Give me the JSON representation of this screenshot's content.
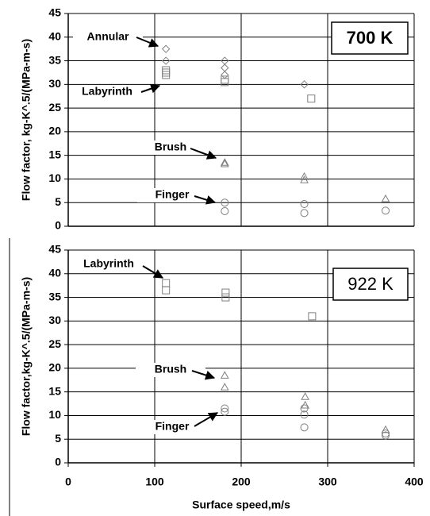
{
  "chart_data": [
    {
      "type": "scatter",
      "title": "700 K",
      "ylabel": "Flow factor, kg-K^.5/(MPa-m-s)",
      "xlim": [
        0,
        400
      ],
      "xticks": [
        0,
        100,
        200,
        300,
        400
      ],
      "ylim": [
        0,
        45
      ],
      "yticks": [
        0,
        5,
        10,
        15,
        20,
        25,
        30,
        35,
        40,
        45
      ],
      "grid": true,
      "series": [
        {
          "name": "Annular",
          "marker": "diamond",
          "color": "#808080",
          "x": [
            113,
            113,
            181,
            181,
            181,
            273
          ],
          "values": [
            37.5,
            35,
            35,
            33.5,
            32,
            30
          ]
        },
        {
          "name": "Labyrinth",
          "marker": "square",
          "color": "#808080",
          "x": [
            113,
            113,
            113,
            181,
            181,
            281
          ],
          "values": [
            33,
            32.5,
            32,
            31,
            30.5,
            27
          ]
        },
        {
          "name": "Brush",
          "marker": "triangle",
          "color": "#808080",
          "x": [
            181,
            181,
            273,
            273,
            367
          ],
          "values": [
            13.5,
            13.2,
            10.5,
            9.8,
            5.8
          ]
        },
        {
          "name": "Finger",
          "marker": "circle",
          "color": "#808080",
          "x": [
            181,
            181,
            273,
            273,
            367
          ],
          "values": [
            5,
            3.2,
            4.7,
            2.8,
            3.3
          ]
        }
      ]
    },
    {
      "type": "scatter",
      "title": "922 K",
      "ylabel": "Flow factor,kg-K^.5/(MPa-m-s)",
      "xlabel": "Surface speed,m/s",
      "xlim": [
        0,
        400
      ],
      "xticks": [
        0,
        100,
        200,
        300,
        400
      ],
      "ylim": [
        0,
        45
      ],
      "yticks": [
        0,
        5,
        10,
        15,
        20,
        25,
        30,
        35,
        40,
        45
      ],
      "grid": true,
      "series": [
        {
          "name": "Labyrinth",
          "marker": "square",
          "color": "#808080",
          "x": [
            113,
            113,
            182,
            182,
            282
          ],
          "values": [
            38,
            36.5,
            36,
            35,
            31
          ]
        },
        {
          "name": "Brush",
          "marker": "triangle",
          "color": "#808080",
          "x": [
            181,
            181,
            274,
            274,
            367
          ],
          "values": [
            18.5,
            16,
            14,
            12.2,
            7
          ]
        },
        {
          "name": "Finger",
          "marker": "circle",
          "color": "#808080",
          "x": [
            181,
            181,
            273,
            273,
            273,
            367,
            367
          ],
          "values": [
            11.5,
            10.8,
            11.5,
            10.2,
            7.5,
            6.2,
            5.8
          ]
        }
      ]
    }
  ]
}
